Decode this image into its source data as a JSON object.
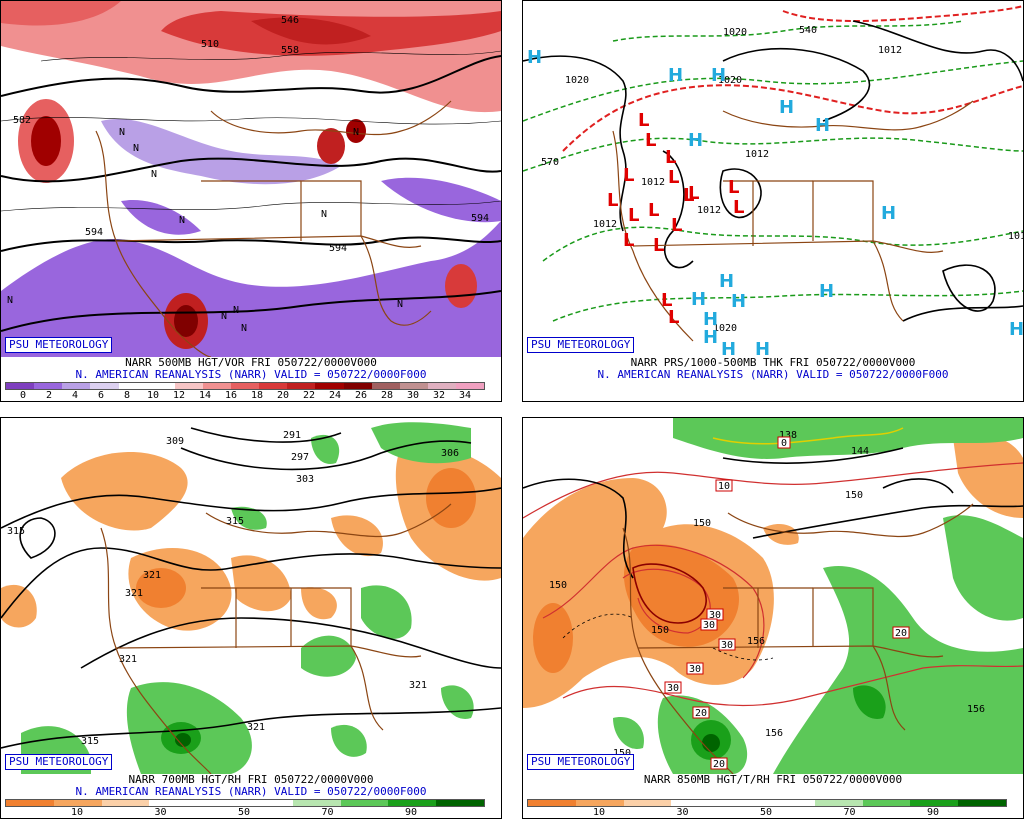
{
  "branding": "PSU METEOROLOGY",
  "panels": [
    {
      "id": "p1",
      "line1": "NARR 500MB HGT/VOR FRI 050722/0000V000",
      "line2": "N. AMERICAN REANALYSIS (NARR) VALID = 050722/0000F000",
      "colorbar": [
        "#7f3fbf",
        "#9966dd",
        "#b9a0e6",
        "#dcd0f0",
        "#ffffff",
        "#ffffff",
        "#f7c5c5",
        "#f09090",
        "#e66060",
        "#d83a3a",
        "#c02020",
        "#a00000",
        "#800000",
        "#a06060",
        "#c09090",
        "#e0b0c0",
        "#f0a0c0"
      ],
      "ticks": [
        "0",
        "2",
        "4",
        "6",
        "8",
        "10",
        "12",
        "14",
        "16",
        "18",
        "20",
        "22",
        "24",
        "26",
        "28",
        "30",
        "32",
        "34"
      ],
      "contour_labels": [
        "582",
        "594",
        "594",
        "594",
        "510",
        "546",
        "558"
      ],
      "extrema": [
        "N",
        "N",
        "N",
        "N",
        "N",
        "N",
        "N",
        "N",
        "N",
        "N",
        "N"
      ]
    },
    {
      "id": "p2",
      "line1": "NARR PRS/1000-500MB THK FRI 050722/0000V000",
      "line2": "N. AMERICAN REANALYSIS (NARR) VALID = 050722/0000F000",
      "contour_labels": [
        "1020",
        "1020",
        "1012",
        "1012",
        "1012",
        "1012",
        "1012",
        "1020",
        "570",
        "540",
        "1020",
        "1012"
      ],
      "lows": [
        "L",
        "L",
        "L",
        "L",
        "L",
        "L",
        "L",
        "L",
        "L",
        "L",
        "L",
        "L",
        "L",
        "L",
        "L",
        "L",
        "L"
      ],
      "highs": [
        "H",
        "H",
        "H",
        "H",
        "H",
        "H",
        "H",
        "H",
        "H",
        "H",
        "H",
        "H",
        "H",
        "H",
        "H",
        "H"
      ]
    },
    {
      "id": "p3",
      "line1": "NARR 700MB HGT/RH FRI 050722/0000V000",
      "line2": "N. AMERICAN REANALYSIS (NARR) VALID = 050722/0000F000",
      "colorbar": [
        "#f08030",
        "#f6a65e",
        "#fbd0a8",
        "#ffffff",
        "#ffffff",
        "#ffffff",
        "#b8e6b0",
        "#5cc858",
        "#1aa01a",
        "#006400"
      ],
      "ticks": [
        "10",
        "30",
        "50",
        "70",
        "90"
      ],
      "contour_labels": [
        "309",
        "291",
        "297",
        "303",
        "306",
        "315",
        "315",
        "321",
        "321",
        "321",
        "321",
        "315",
        "321"
      ]
    },
    {
      "id": "p4",
      "line1": "NARR 850MB HGT/T/RH FRI 050722/0000V000",
      "line2": "",
      "colorbar": [
        "#f08030",
        "#f6a65e",
        "#fbd0a8",
        "#ffffff",
        "#ffffff",
        "#ffffff",
        "#b8e6b0",
        "#5cc858",
        "#1aa01a",
        "#006400"
      ],
      "ticks": [
        "10",
        "30",
        "50",
        "70",
        "90"
      ],
      "contour_labels": [
        "150",
        "150",
        "156",
        "150",
        "150",
        "156",
        "156",
        "138",
        "144",
        "150"
      ],
      "temp_labels": [
        "0",
        "10",
        "30",
        "30",
        "30",
        "30",
        "30",
        "20",
        "20",
        "20",
        "10"
      ]
    }
  ],
  "colors": {
    "psu": "#0000cc",
    "border": "#8b4513",
    "contour": "#000000"
  }
}
